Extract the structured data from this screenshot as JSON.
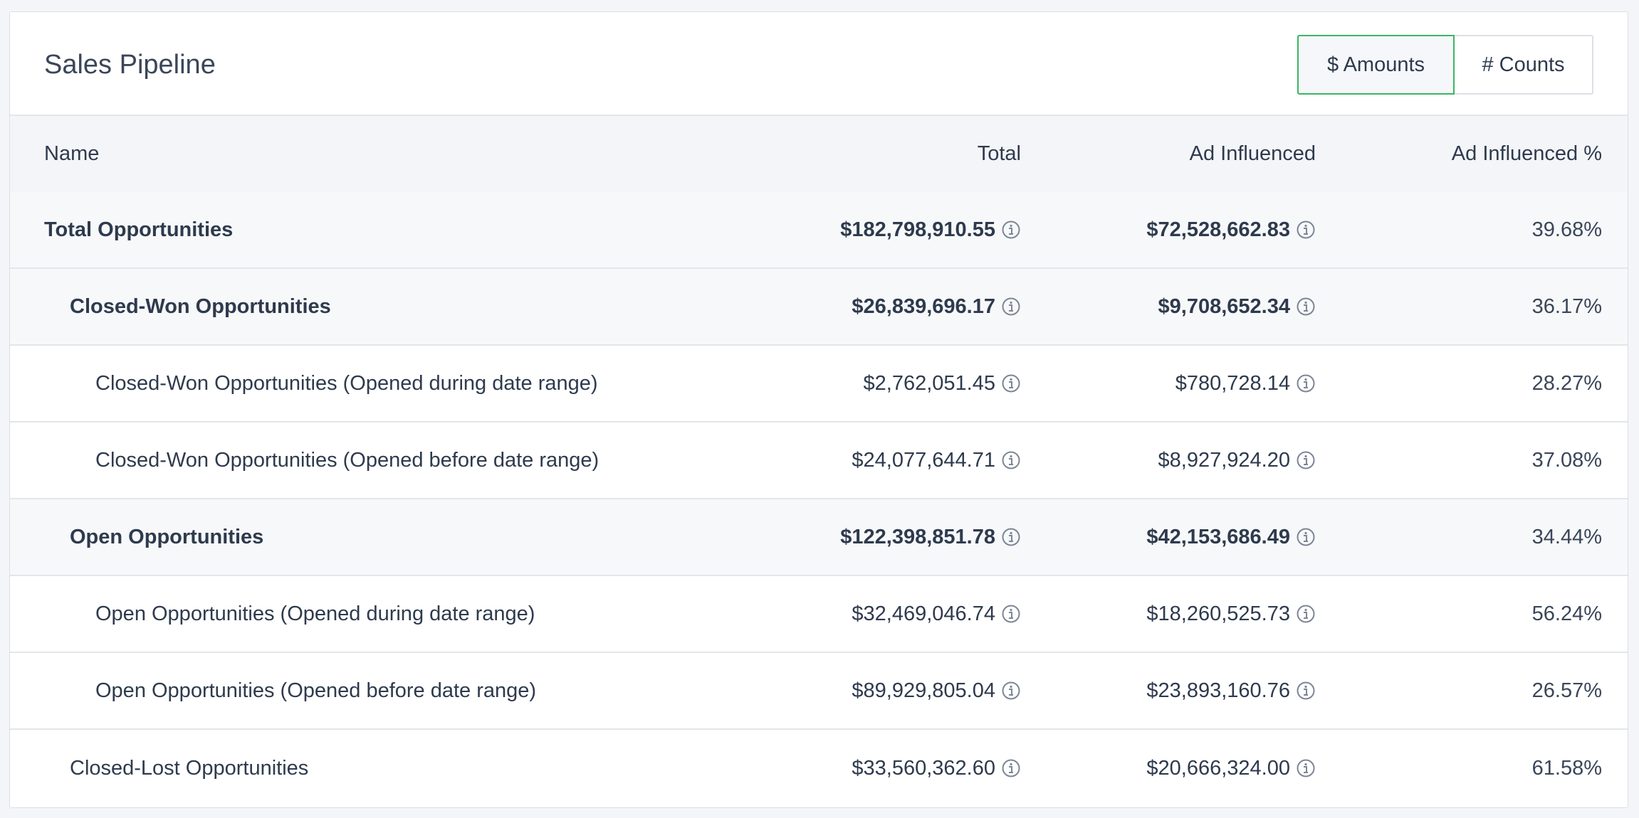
{
  "header": {
    "title": "Sales Pipeline",
    "toggle_amounts": "$ Amounts",
    "toggle_counts": "# Counts"
  },
  "colors": {
    "active_toggle_border": "#3db565",
    "header_row_bg": "#f4f5f8",
    "shaded_row_bg": "#f7f8f9",
    "text": "#2e3a4d"
  },
  "table": {
    "columns": [
      "Name",
      "Total",
      "Ad Influenced",
      "Ad Influenced %"
    ],
    "rows": [
      {
        "name": "Total Opportunities",
        "total": "$182,798,910.55",
        "ad": "$72,528,662.83",
        "pct": "39.68%"
      },
      {
        "name": "Closed-Won Opportunities",
        "total": "$26,839,696.17",
        "ad": "$9,708,652.34",
        "pct": "36.17%"
      },
      {
        "name": "Closed-Won Opportunities (Opened during date range)",
        "total": "$2,762,051.45",
        "ad": "$780,728.14",
        "pct": "28.27%"
      },
      {
        "name": "Closed-Won Opportunities (Opened before date range)",
        "total": "$24,077,644.71",
        "ad": "$8,927,924.20",
        "pct": "37.08%"
      },
      {
        "name": "Open Opportunities",
        "total": "$122,398,851.78",
        "ad": "$42,153,686.49",
        "pct": "34.44%"
      },
      {
        "name": "Open Opportunities (Opened during date range)",
        "total": "$32,469,046.74",
        "ad": "$18,260,525.73",
        "pct": "56.24%"
      },
      {
        "name": "Open Opportunities (Opened before date range)",
        "total": "$89,929,805.04",
        "ad": "$23,893,160.76",
        "pct": "26.57%"
      },
      {
        "name": "Closed-Lost Opportunities",
        "total": "$33,560,362.60",
        "ad": "$20,666,324.00",
        "pct": "61.58%"
      }
    ]
  }
}
